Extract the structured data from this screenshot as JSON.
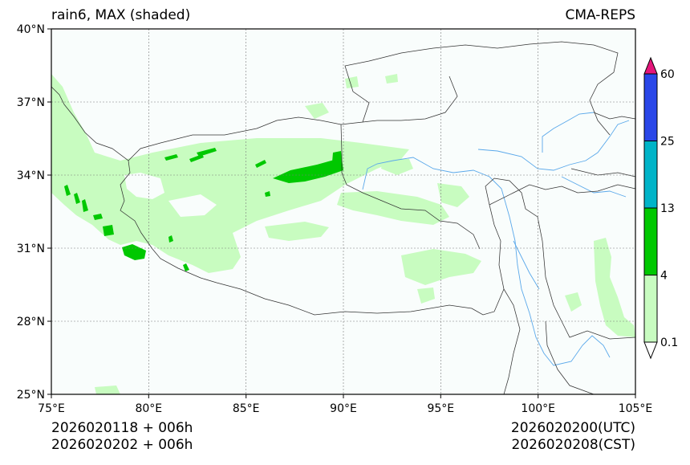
{
  "title_left": "rain6, MAX (shaded)",
  "title_right": "CMA-REPS",
  "footer": {
    "init_bj": "2026020118  +  006h",
    "init_local": "2026020202  +  006h",
    "valid_utc": "2026020200(UTC)",
    "valid_cst": "2026020208(CST)"
  },
  "map": {
    "lon_range": [
      75,
      105
    ],
    "lat_range": [
      25,
      40
    ],
    "lon_ticks": [
      "75°E",
      "80°E",
      "85°E",
      "90°E",
      "95°E",
      "100°E",
      "105°E"
    ],
    "lat_ticks": [
      "40°N",
      "37°N",
      "34°N",
      "31°N",
      "28°N",
      "25°N"
    ],
    "gridlines": true,
    "rain_colors": {
      "light": "#c8fcc0",
      "moderate": "#00c800",
      "heavy": "#00b4c8",
      "storm": "#2a47e8",
      "extreme": "#e4157a",
      "river": "#5aa8ea",
      "border": "#333333"
    }
  },
  "colorbar": {
    "levels": [
      "0.1",
      "4",
      "13",
      "25",
      "60"
    ],
    "segment_colors": [
      "#c8fcc0",
      "#00c800",
      "#00b4c8",
      "#2a47e8"
    ],
    "under_color": "#ffffff",
    "over_color": "#e4157a"
  }
}
